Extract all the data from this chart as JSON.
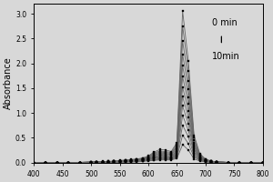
{
  "xlabel": "",
  "ylabel": "Absorbance",
  "xlim": [
    400,
    800
  ],
  "ylim": [
    0,
    3.2
  ],
  "xticks": [
    400,
    450,
    500,
    550,
    600,
    650,
    700,
    750,
    800
  ],
  "yticks": [
    0.0,
    0.5,
    1.0,
    1.5,
    2.0,
    2.5,
    3.0
  ],
  "annotation_top": "0 min",
  "annotation_bot": "10min",
  "bg_color": "#d8d8d8",
  "line_color": "#666666",
  "marker": "s",
  "markersize": 2.0,
  "x": [
    400,
    420,
    440,
    460,
    480,
    500,
    510,
    520,
    530,
    540,
    550,
    560,
    570,
    580,
    590,
    600,
    610,
    620,
    630,
    640,
    650,
    660,
    670,
    680,
    690,
    700,
    710,
    720,
    740,
    760,
    780,
    800
  ],
  "curves": [
    [
      0.0,
      0.0,
      0.0,
      0.0,
      0.0,
      0.01,
      0.01,
      0.02,
      0.02,
      0.03,
      0.04,
      0.05,
      0.06,
      0.07,
      0.09,
      0.13,
      0.21,
      0.26,
      0.25,
      0.22,
      0.4,
      3.05,
      2.05,
      0.55,
      0.18,
      0.07,
      0.03,
      0.01,
      0.0,
      0.0,
      0.0,
      0.0
    ],
    [
      0.0,
      0.0,
      0.0,
      0.0,
      0.0,
      0.01,
      0.01,
      0.01,
      0.02,
      0.02,
      0.03,
      0.04,
      0.05,
      0.06,
      0.08,
      0.12,
      0.19,
      0.23,
      0.22,
      0.2,
      0.36,
      2.75,
      1.85,
      0.5,
      0.16,
      0.06,
      0.02,
      0.01,
      0.0,
      0.0,
      0.0,
      0.0
    ],
    [
      0.0,
      0.0,
      0.0,
      0.0,
      0.0,
      0.01,
      0.01,
      0.01,
      0.02,
      0.02,
      0.03,
      0.04,
      0.05,
      0.06,
      0.07,
      0.11,
      0.17,
      0.21,
      0.2,
      0.18,
      0.32,
      2.45,
      1.65,
      0.45,
      0.14,
      0.05,
      0.02,
      0.01,
      0.0,
      0.0,
      0.0,
      0.0
    ],
    [
      0.0,
      0.0,
      0.0,
      0.0,
      0.0,
      0.01,
      0.01,
      0.01,
      0.01,
      0.02,
      0.03,
      0.03,
      0.04,
      0.05,
      0.07,
      0.1,
      0.15,
      0.19,
      0.18,
      0.16,
      0.29,
      2.18,
      1.48,
      0.4,
      0.12,
      0.05,
      0.02,
      0.01,
      0.0,
      0.0,
      0.0,
      0.0
    ],
    [
      0.0,
      0.0,
      0.0,
      0.0,
      0.0,
      0.0,
      0.01,
      0.01,
      0.01,
      0.02,
      0.02,
      0.03,
      0.04,
      0.05,
      0.06,
      0.09,
      0.14,
      0.17,
      0.16,
      0.15,
      0.26,
      1.95,
      1.32,
      0.36,
      0.11,
      0.04,
      0.02,
      0.01,
      0.0,
      0.0,
      0.0,
      0.0
    ],
    [
      0.0,
      0.0,
      0.0,
      0.0,
      0.0,
      0.0,
      0.01,
      0.01,
      0.01,
      0.02,
      0.02,
      0.03,
      0.03,
      0.04,
      0.06,
      0.08,
      0.12,
      0.15,
      0.14,
      0.13,
      0.23,
      1.73,
      1.18,
      0.32,
      0.1,
      0.04,
      0.01,
      0.01,
      0.0,
      0.0,
      0.0,
      0.0
    ],
    [
      0.0,
      0.0,
      0.0,
      0.0,
      0.0,
      0.0,
      0.01,
      0.01,
      0.01,
      0.01,
      0.02,
      0.02,
      0.03,
      0.04,
      0.05,
      0.07,
      0.11,
      0.13,
      0.13,
      0.11,
      0.21,
      1.52,
      1.04,
      0.28,
      0.09,
      0.03,
      0.01,
      0.01,
      0.0,
      0.0,
      0.0,
      0.0
    ],
    [
      0.0,
      0.0,
      0.0,
      0.0,
      0.0,
      0.0,
      0.0,
      0.01,
      0.01,
      0.01,
      0.02,
      0.02,
      0.03,
      0.03,
      0.05,
      0.07,
      0.1,
      0.12,
      0.11,
      0.1,
      0.18,
      1.33,
      0.91,
      0.25,
      0.08,
      0.03,
      0.01,
      0.01,
      0.0,
      0.0,
      0.0,
      0.0
    ],
    [
      0.0,
      0.0,
      0.0,
      0.0,
      0.0,
      0.0,
      0.0,
      0.01,
      0.01,
      0.01,
      0.01,
      0.02,
      0.02,
      0.03,
      0.04,
      0.06,
      0.09,
      0.1,
      0.1,
      0.09,
      0.16,
      1.14,
      0.78,
      0.21,
      0.07,
      0.03,
      0.01,
      0.0,
      0.0,
      0.0,
      0.0,
      0.0
    ],
    [
      0.0,
      0.0,
      0.0,
      0.0,
      0.0,
      0.0,
      0.0,
      0.0,
      0.01,
      0.01,
      0.01,
      0.02,
      0.02,
      0.03,
      0.04,
      0.05,
      0.08,
      0.09,
      0.09,
      0.08,
      0.14,
      0.95,
      0.65,
      0.18,
      0.06,
      0.02,
      0.01,
      0.0,
      0.0,
      0.0,
      0.0,
      0.0
    ],
    [
      0.0,
      0.0,
      0.0,
      0.0,
      0.0,
      0.0,
      0.0,
      0.0,
      0.01,
      0.01,
      0.01,
      0.01,
      0.02,
      0.02,
      0.03,
      0.04,
      0.06,
      0.08,
      0.07,
      0.07,
      0.12,
      0.75,
      0.52,
      0.14,
      0.05,
      0.02,
      0.01,
      0.0,
      0.0,
      0.0,
      0.0,
      0.0
    ],
    [
      0.0,
      0.0,
      0.0,
      0.0,
      0.0,
      0.0,
      0.0,
      0.0,
      0.0,
      0.01,
      0.01,
      0.01,
      0.01,
      0.02,
      0.03,
      0.04,
      0.05,
      0.06,
      0.06,
      0.06,
      0.1,
      0.55,
      0.38,
      0.11,
      0.04,
      0.01,
      0.01,
      0.0,
      0.0,
      0.0,
      0.0,
      0.0
    ],
    [
      0.0,
      0.0,
      0.0,
      0.0,
      0.0,
      0.0,
      0.0,
      0.0,
      0.0,
      0.0,
      0.01,
      0.01,
      0.01,
      0.01,
      0.02,
      0.03,
      0.04,
      0.05,
      0.05,
      0.05,
      0.08,
      0.36,
      0.25,
      0.07,
      0.03,
      0.01,
      0.0,
      0.0,
      0.0,
      0.0,
      0.0,
      0.0
    ]
  ],
  "figsize": [
    3.0,
    2.0
  ],
  "dpi": 100
}
